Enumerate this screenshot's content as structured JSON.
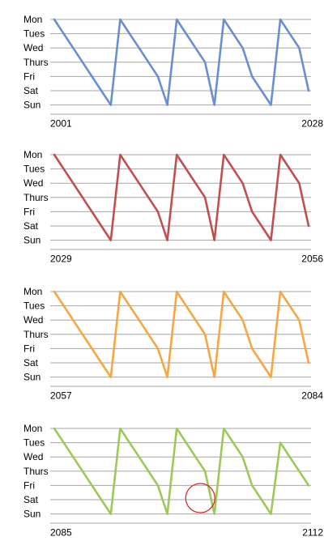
{
  "chart_data": [
    {
      "type": "line",
      "title": "",
      "y_categories": [
        "Mon",
        "Tues",
        "Wed",
        "Thurs",
        "Fri",
        "Sat",
        "Sun"
      ],
      "x_tick_labels": [
        "2001",
        "2028"
      ],
      "xlim": [
        2001,
        2028
      ],
      "series": [
        {
          "color": "#6a8fcf",
          "x": [
            2001,
            2003,
            2004,
            2005,
            2006,
            2007,
            2008,
            2009,
            2010,
            2011,
            2012,
            2013,
            2014,
            2015,
            2016,
            2017,
            2018,
            2019,
            2020,
            2021,
            2022,
            2023,
            2024,
            2025,
            2026,
            2027,
            2028
          ],
          "y": [
            "Mon",
            "Wed",
            "Thurs",
            "Fri",
            "Sat",
            "Sun",
            "Mon",
            "Tues",
            "Wed",
            "Thurs",
            "Fri",
            "Sun",
            "Mon",
            "Tues",
            "Wed",
            "Thurs",
            "Sun",
            "Mon",
            "Tues",
            "Wed",
            "Fri",
            "Sat",
            "Sun",
            "Mon",
            "Tues",
            "Wed",
            "Sat"
          ]
        }
      ]
    },
    {
      "type": "line",
      "title": "",
      "y_categories": [
        "Mon",
        "Tues",
        "Wed",
        "Thurs",
        "Fri",
        "Sat",
        "Sun"
      ],
      "x_tick_labels": [
        "2029",
        "2056"
      ],
      "xlim": [
        2029,
        2056
      ],
      "series": [
        {
          "color": "#c0504d",
          "x": [
            2029,
            2031,
            2032,
            2033,
            2034,
            2035,
            2036,
            2037,
            2038,
            2039,
            2040,
            2041,
            2042,
            2043,
            2044,
            2045,
            2046,
            2047,
            2048,
            2049,
            2050,
            2051,
            2052,
            2053,
            2054,
            2055,
            2056
          ],
          "y": [
            "Mon",
            "Wed",
            "Thurs",
            "Fri",
            "Sat",
            "Sun",
            "Mon",
            "Tues",
            "Wed",
            "Thurs",
            "Fri",
            "Sun",
            "Mon",
            "Tues",
            "Wed",
            "Thurs",
            "Sun",
            "Mon",
            "Tues",
            "Wed",
            "Fri",
            "Sat",
            "Sun",
            "Mon",
            "Tues",
            "Wed",
            "Sat"
          ]
        }
      ]
    },
    {
      "type": "line",
      "title": "",
      "y_categories": [
        "Mon",
        "Tues",
        "Wed",
        "Thurs",
        "Fri",
        "Sat",
        "Sun"
      ],
      "x_tick_labels": [
        "2057",
        "2084"
      ],
      "xlim": [
        2057,
        2084
      ],
      "series": [
        {
          "color": "#f5a742",
          "x": [
            2057,
            2059,
            2060,
            2061,
            2062,
            2063,
            2064,
            2065,
            2066,
            2067,
            2068,
            2069,
            2070,
            2071,
            2072,
            2073,
            2074,
            2075,
            2076,
            2077,
            2078,
            2079,
            2080,
            2081,
            2082,
            2083,
            2084
          ],
          "y": [
            "Mon",
            "Wed",
            "Thurs",
            "Fri",
            "Sat",
            "Sun",
            "Mon",
            "Tues",
            "Wed",
            "Thurs",
            "Fri",
            "Sun",
            "Mon",
            "Tues",
            "Wed",
            "Thurs",
            "Sun",
            "Mon",
            "Tues",
            "Wed",
            "Fri",
            "Sat",
            "Sun",
            "Mon",
            "Tues",
            "Wed",
            "Sat"
          ]
        }
      ]
    },
    {
      "type": "line",
      "title": "",
      "y_categories": [
        "Mon",
        "Tues",
        "Wed",
        "Thurs",
        "Fri",
        "Sat",
        "Sun"
      ],
      "x_tick_labels": [
        "2085",
        "2112"
      ],
      "xlim": [
        2085,
        2112
      ],
      "series": [
        {
          "color": "#9dc85a",
          "x": [
            2085,
            2087,
            2088,
            2089,
            2090,
            2091,
            2092,
            2093,
            2094,
            2095,
            2096,
            2097,
            2098,
            2099,
            2100,
            2101,
            2102,
            2103,
            2104,
            2105,
            2106,
            2107,
            2108,
            2109,
            2110,
            2111,
            2112
          ],
          "y": [
            "Mon",
            "Wed",
            "Thurs",
            "Fri",
            "Sat",
            "Sun",
            "Mon",
            "Tues",
            "Wed",
            "Thurs",
            "Fri",
            "Sun",
            "Mon",
            "Tues",
            "Wed",
            "Thurs",
            "Sun",
            "Mon",
            "Tues",
            "Wed",
            "Fri",
            "Sat",
            "Sun",
            "Tues",
            "Wed",
            "Thurs",
            "Fri"
          ]
        }
      ],
      "highlight": {
        "shape": "circle",
        "color": "#e31b1b",
        "x": 2100.5,
        "y": "Sat"
      }
    }
  ]
}
